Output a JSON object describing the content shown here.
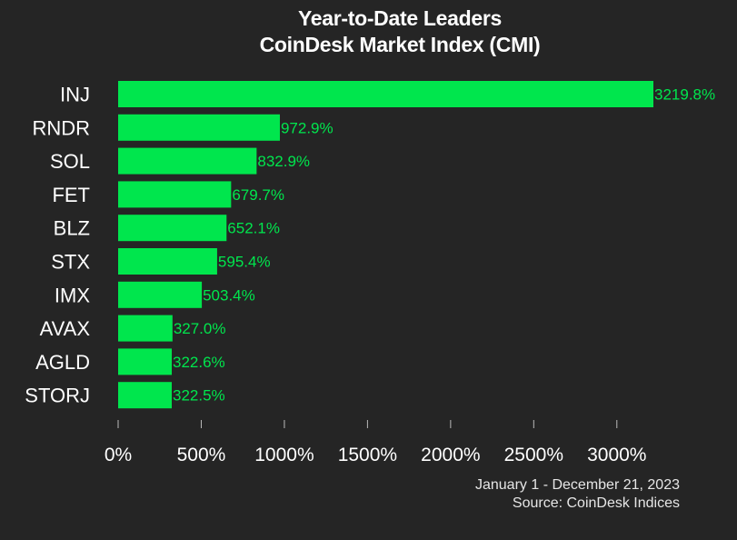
{
  "chart_data": {
    "type": "bar",
    "orientation": "horizontal",
    "title": "Year-to-Date Leaders",
    "subtitle": "CoinDesk Market Index (CMI)",
    "categories": [
      "INJ",
      "RNDR",
      "SOL",
      "FET",
      "BLZ",
      "STX",
      "IMX",
      "AVAX",
      "AGLD",
      "STORJ"
    ],
    "values": [
      3219.8,
      972.9,
      832.9,
      679.7,
      652.1,
      595.4,
      503.4,
      327.0,
      322.6,
      322.5
    ],
    "value_labels": [
      "3219.8%",
      "972.9%",
      "832.9%",
      "679.7%",
      "652.1%",
      "595.4%",
      "503.4%",
      "327.0%",
      "322.6%",
      "322.5%"
    ],
    "x_ticks": [
      0,
      500,
      1000,
      1500,
      2000,
      2500,
      3000
    ],
    "x_tick_labels": [
      "0%",
      "500%",
      "1000%",
      "1500%",
      "2000%",
      "2500%",
      "3000%"
    ],
    "xlim": [
      0,
      3250
    ],
    "xlabel": "",
    "ylabel": "",
    "grid": false,
    "legend": "none",
    "bar_color": "#00e64d",
    "label_color": "#00e64d",
    "background": "#252525"
  },
  "footer": {
    "date_range": "January 1 - December 21, 2023",
    "source": "Source: CoinDesk Indices"
  }
}
